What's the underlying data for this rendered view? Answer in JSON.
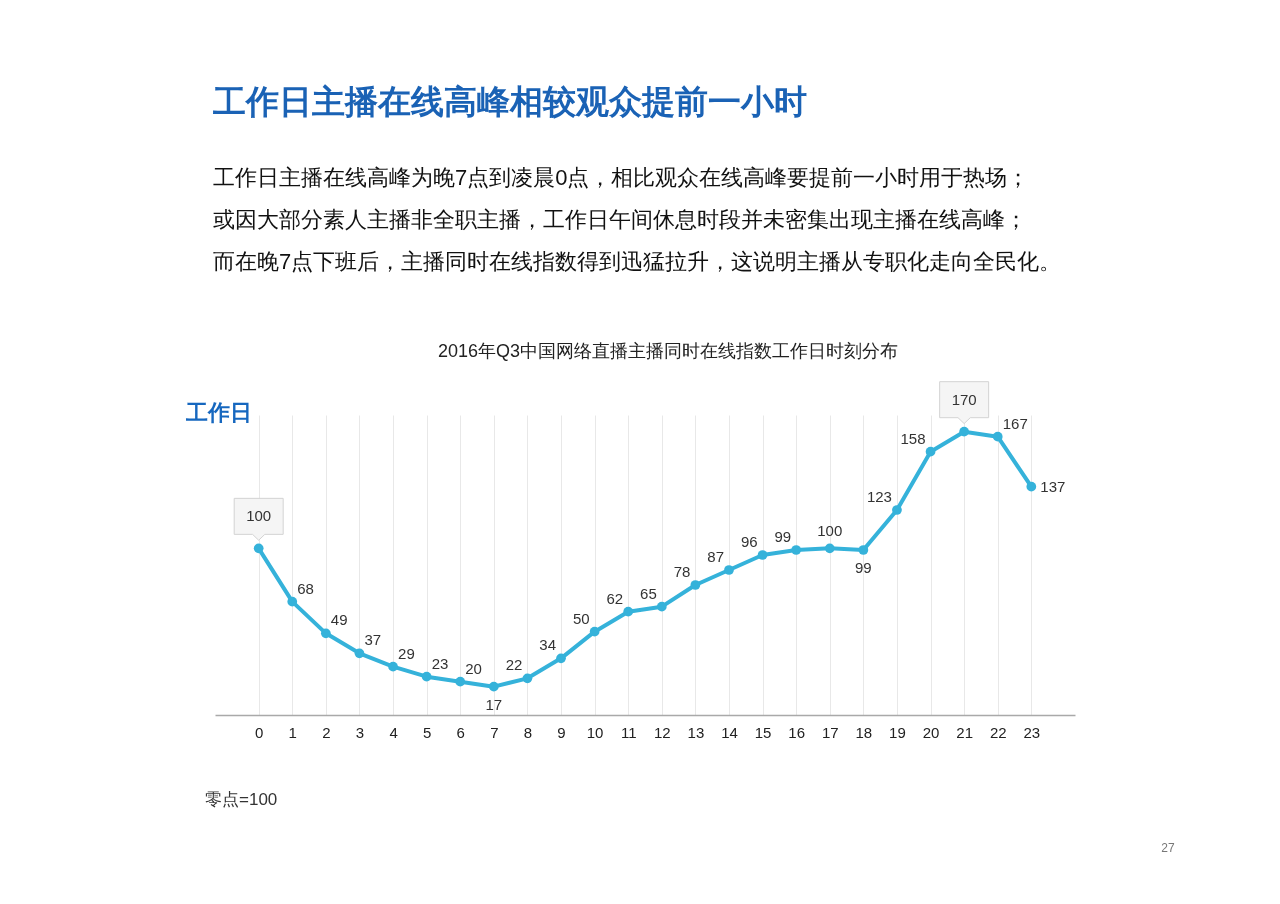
{
  "chart_data": {
    "type": "line",
    "title": "工作日主播在线高峰相较观众提前一小时",
    "subtitle": "2016年Q3中国网络直播主播同时在线指数工作日时刻分布",
    "annotations": [
      "工作日主播在线高峰为晚7点到凌晨0点，相比观众在线高峰要提前一小时用于热场；",
      "或因大部分素人主播非全职主播，工作日午间休息时段并未密集出现主播在线高峰；",
      "而在晚7点下班后，主播同时在线指数得到迅猛拉升，这说明主播从专职化走向全民化。",
      "工作日",
      "零点=100",
      "27"
    ],
    "x": [
      0,
      1,
      2,
      3,
      4,
      5,
      6,
      7,
      8,
      9,
      10,
      11,
      12,
      13,
      14,
      15,
      16,
      17,
      18,
      19,
      20,
      21,
      22,
      23
    ],
    "xlim": [
      -1.3,
      24.3
    ],
    "xticks": [
      0,
      1,
      2,
      3,
      4,
      5,
      6,
      7,
      8,
      9,
      10,
      11,
      12,
      13,
      14,
      15,
      16,
      17,
      18,
      19,
      20,
      21,
      22,
      23
    ],
    "series": [
      {
        "color": "#35b2da",
        "values": [
          100,
          68,
          49,
          37,
          29,
          23,
          20,
          17,
          22,
          34,
          50,
          62,
          65,
          78,
          87,
          96,
          99,
          100,
          99,
          123,
          158,
          170,
          167,
          137
        ]
      }
    ],
    "data_labels": true,
    "grid": "x",
    "tick_labels": "x",
    "marker": "circle",
    "line_style": "solid"
  }
}
